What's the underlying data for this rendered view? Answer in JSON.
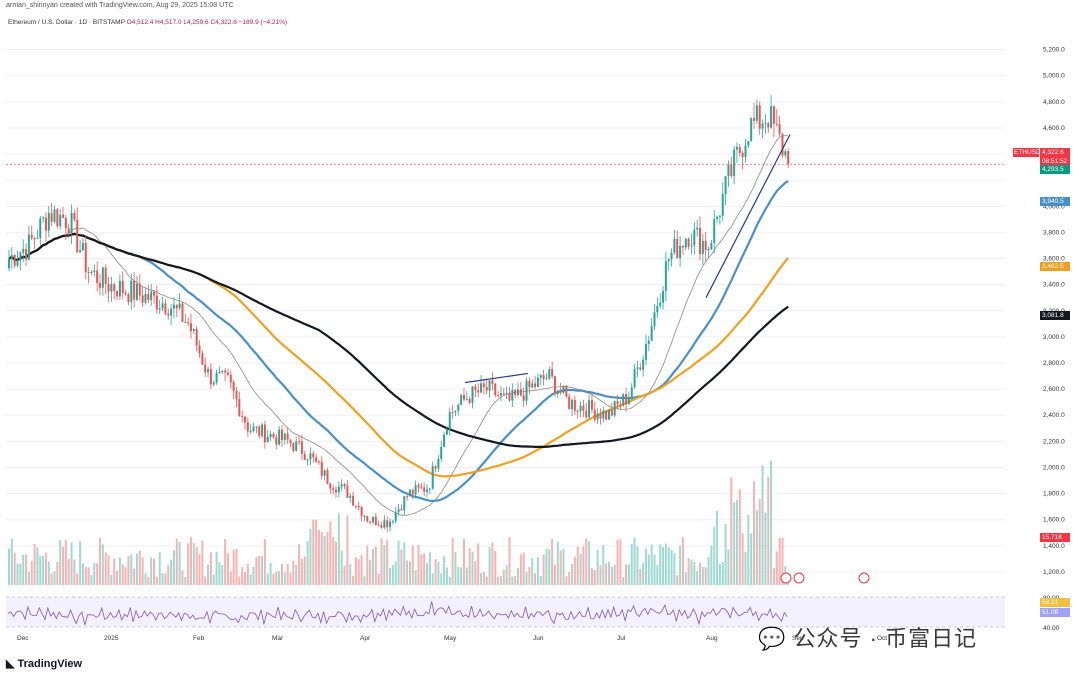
{
  "header": {
    "creator_text": "arman_shirinyan created with TradingView.com, Aug 29, 2025 15:08 UTC",
    "symbol": "Ethereum / U.S. Dollar · 1D · BITSTAMP",
    "ohlc": "O4,512.4  H4,517.0  L4,259.6  C4,322.6  −189.9 (−4.21%)"
  },
  "price_axis_labels": [
    "5,200.0",
    "5,000.0",
    "4,800.0",
    "4,600.0",
    "4,400.0",
    "4,000.0",
    "3,800.0",
    "3,600.0",
    "3,400.0",
    "3,200.0",
    "3,000.0",
    "2,800.0",
    "2,600.0",
    "2,400.0",
    "2,200.0",
    "2,000.0",
    "1,800.0",
    "1,600.0",
    "1,400.0",
    "1,200.0"
  ],
  "time_axis_labels": [
    "Dec",
    "2025",
    "Feb",
    "Mar",
    "Apr",
    "May",
    "Jun",
    "Jul",
    "Aug",
    "Sep",
    "Oct"
  ],
  "rsi_axis_labels": [
    "80.00",
    "40.00"
  ],
  "price_tags": [
    {
      "label": "ETHUSD",
      "value": "4,322.6",
      "sub": "08:51:52",
      "color": "#f23645"
    },
    {
      "label": "",
      "value": "4,293.5",
      "color": "#089981"
    },
    {
      "label": "",
      "value": "3,940.5",
      "color": "#4a90c8"
    },
    {
      "label": "",
      "value": "3,462.5",
      "color": "#f0a020"
    },
    {
      "label": "",
      "value": "3,081.8",
      "color": "#131722"
    },
    {
      "label": "",
      "value": "15.71K",
      "color": "#f23645"
    },
    {
      "label": "",
      "value": "59.31",
      "color": "#f0c040"
    },
    {
      "label": "",
      "value": "51.08",
      "color": "#a0a0ff"
    }
  ],
  "footer": {
    "logo_text": "TradingView",
    "watermark_text": "公众号 · 币富日记"
  },
  "chart_data": {
    "type": "candlestick",
    "title": "Ethereum / U.S. Dollar · 1D · BITSTAMP",
    "ylim": [
      1100,
      5350
    ],
    "x_range": [
      "2024-11-28",
      "2025-10-10"
    ],
    "months": [
      "Dec",
      "2025",
      "Feb",
      "Mar",
      "Apr",
      "May",
      "Jun",
      "Jul",
      "Aug",
      "Sep",
      "Oct"
    ],
    "price_path_weekly": [
      3600,
      3700,
      3950,
      3900,
      3500,
      3400,
      3350,
      3300,
      3250,
      3100,
      2700,
      2650,
      2300,
      2250,
      2200,
      2100,
      1900,
      1800,
      1600,
      1580,
      1800,
      1850,
      2400,
      2550,
      2600,
      2500,
      2600,
      2700,
      2500,
      2450,
      2400,
      2550,
      3000,
      3600,
      3800,
      3700,
      4200,
      4600,
      4700,
      4350
    ],
    "current_price": 4322.6,
    "ma20": 4293.5,
    "ma50": 3940.5,
    "ma100": 3462.5,
    "ma200": 3081.8,
    "volume_last": "15.71K",
    "rsi": 59.31,
    "rsi_ma": 51.08
  },
  "colors": {
    "up": "#26a69a",
    "down": "#ef5350",
    "ma_fast": "#8a8a8a",
    "ma_mid": "#4a90c8",
    "ma_slow": "#f0a020",
    "ma_long": "#131722"
  }
}
